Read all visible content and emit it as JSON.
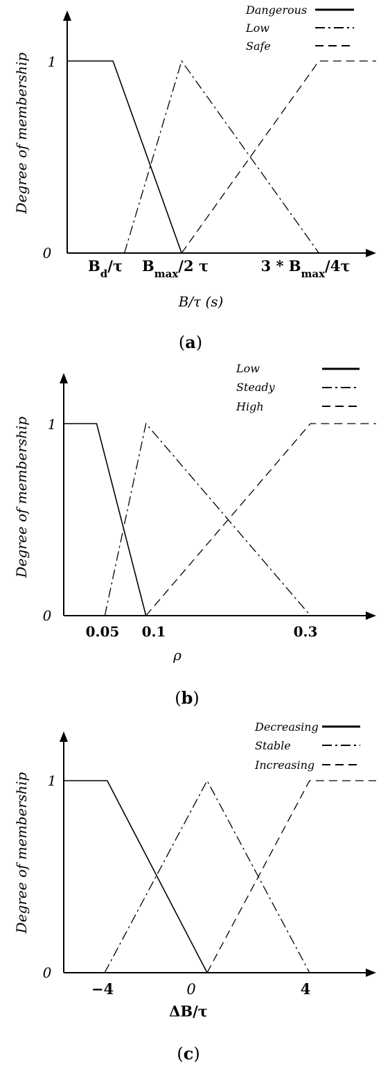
{
  "chart_data": [
    {
      "type": "line",
      "caption_open": "(",
      "caption_letter": "a",
      "caption_close": ")",
      "ylabel": "Degree of membership",
      "xlabel": "B/τ (s)",
      "yticks": [
        "0",
        "1"
      ],
      "xticks": [
        {
          "main": "B",
          "sub": "d",
          "rest": "/τ",
          "x": 1
        },
        {
          "main": "B",
          "sub": "max",
          "rest": "/2 τ",
          "x": 2
        },
        {
          "main": "3 * B",
          "sub": "max",
          "rest": "/4τ",
          "x": 4
        }
      ],
      "xlim": [
        0,
        5.4
      ],
      "ylim": [
        0,
        1
      ],
      "series": [
        {
          "name": "Dangerous",
          "style": "solid",
          "x": [
            0,
            0.8,
            2
          ],
          "y": [
            1,
            1,
            0
          ]
        },
        {
          "name": "Low",
          "style": "dashdot",
          "x": [
            1,
            2,
            4.4
          ],
          "y": [
            0,
            1,
            0
          ]
        },
        {
          "name": "Safe",
          "style": "dashed",
          "x": [
            2,
            4.4,
            5.4
          ],
          "y": [
            0,
            1,
            1
          ]
        }
      ]
    },
    {
      "type": "line",
      "caption_open": "(",
      "caption_letter": "b",
      "caption_close": ")",
      "ylabel": "Degree of membership",
      "xlabel": "ρ",
      "yticks": [
        "0",
        "1"
      ],
      "xticks": [
        {
          "main": "0.05",
          "x": 0.05
        },
        {
          "main": "0.1",
          "x": 0.1
        },
        {
          "main": "0.3",
          "x": 0.3
        }
      ],
      "xlim": [
        0,
        0.38
      ],
      "ylim": [
        0,
        1
      ],
      "series": [
        {
          "name": "Low",
          "style": "solid",
          "x": [
            0,
            0.04,
            0.1
          ],
          "y": [
            1,
            1,
            0
          ]
        },
        {
          "name": "Steady",
          "style": "dashdot",
          "x": [
            0.05,
            0.1,
            0.3
          ],
          "y": [
            0,
            1,
            0
          ]
        },
        {
          "name": "High",
          "style": "dashed",
          "x": [
            0.1,
            0.3,
            0.38
          ],
          "y": [
            0,
            1,
            1
          ]
        }
      ]
    },
    {
      "type": "line",
      "caption_open": "(",
      "caption_letter": "c",
      "caption_close": ")",
      "ylabel": "Degree of membership",
      "xlabel": "ΔB/τ",
      "yticks": [
        "0",
        "1"
      ],
      "xticks": [
        {
          "main": "−4",
          "x": -4
        },
        {
          "main": "0",
          "x": 0
        },
        {
          "main": "4",
          "x": 4
        }
      ],
      "xlim": [
        -5.6,
        6.6
      ],
      "ylim": [
        0,
        1
      ],
      "series": [
        {
          "name": "Decreasing",
          "style": "solid",
          "x": [
            -5.6,
            -3.9,
            0
          ],
          "y": [
            1,
            1,
            0
          ]
        },
        {
          "name": "Stable",
          "style": "dashdot",
          "x": [
            -4,
            0,
            4
          ],
          "y": [
            0,
            1,
            0
          ]
        },
        {
          "name": "Increasing",
          "style": "dashed",
          "x": [
            0,
            4,
            6.6
          ],
          "y": [
            0,
            1,
            1
          ]
        }
      ]
    }
  ],
  "colors": {
    "ink": "#000000",
    "background": "#ffffff"
  }
}
